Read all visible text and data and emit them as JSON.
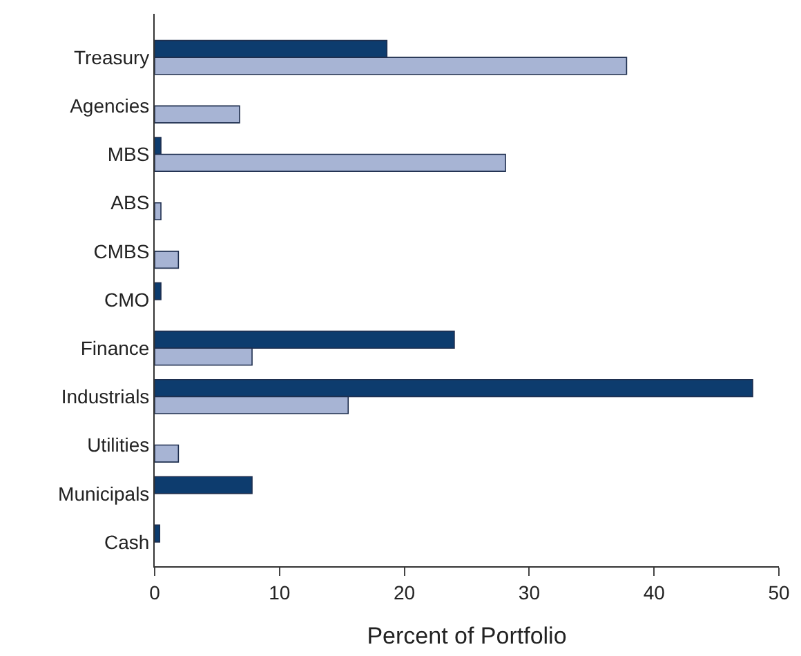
{
  "chart_data": {
    "type": "bar",
    "orientation": "horizontal",
    "xlabel": "Percent of Portfolio",
    "categories": [
      "Treasury",
      "Agencies",
      "MBS",
      "ABS",
      "CMBS",
      "CMO",
      "Finance",
      "Industrials",
      "Utilities",
      "Municipals",
      "Cash"
    ],
    "series": [
      {
        "color": "#0d3c6e",
        "values": [
          18.6,
          null,
          0.5,
          null,
          null,
          0.5,
          24.0,
          47.9,
          null,
          7.8,
          0.4
        ]
      },
      {
        "color": "#a7b4d4",
        "values": [
          37.8,
          6.8,
          28.1,
          0.5,
          1.9,
          null,
          7.8,
          15.5,
          1.9,
          null,
          null
        ]
      }
    ],
    "xlim": [
      0,
      50
    ],
    "xticks": [
      0,
      10,
      20,
      30,
      40,
      50
    ]
  }
}
